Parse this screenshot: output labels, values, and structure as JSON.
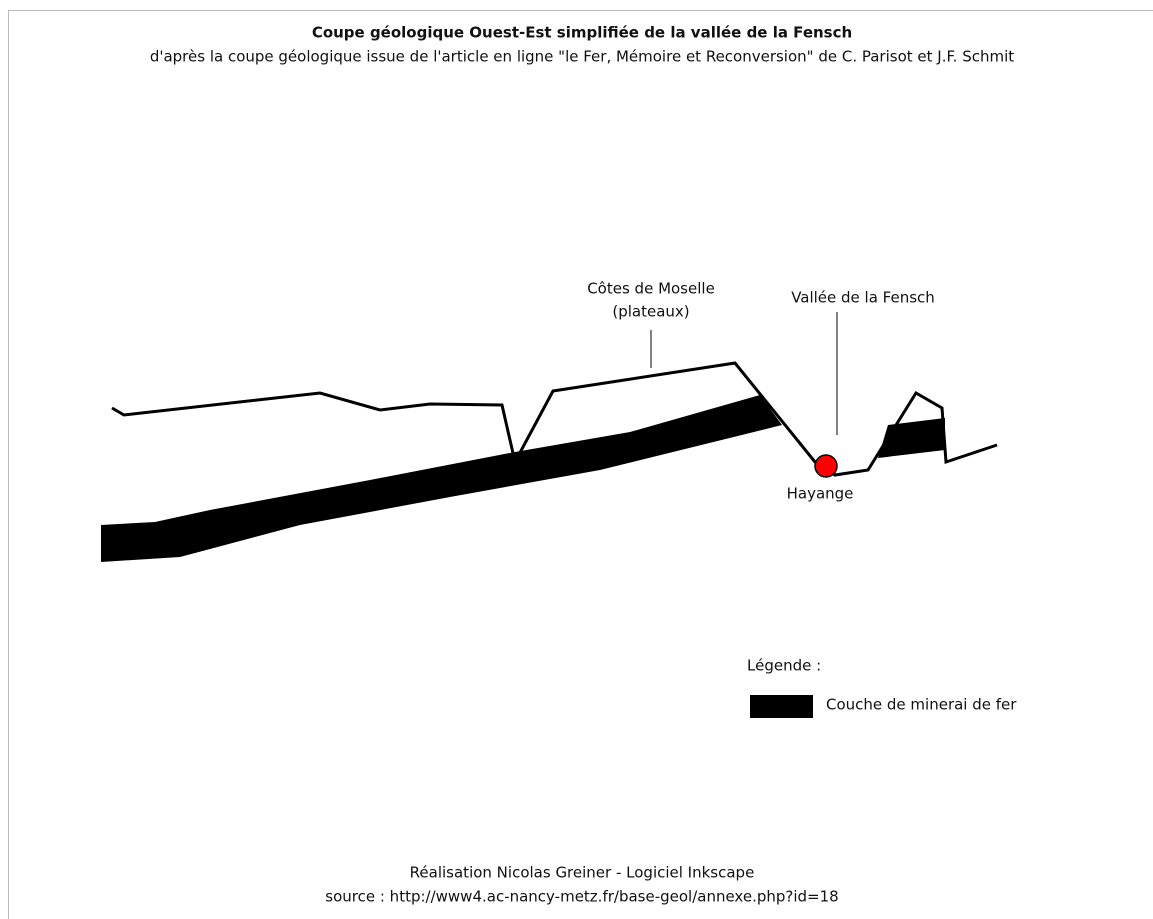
{
  "header": {
    "title": "Coupe géologique Ouest-Est simplifiée de la vallée de la Fensch",
    "subtitle": "d'après la coupe géologique issue de l'article en ligne \"le Fer, Mémoire et Reconversion\" de C. Parisot et J.F. Schmit"
  },
  "labels": {
    "cotes_line1": "Côtes de Moselle",
    "cotes_line2": "(plateaux)",
    "vallee": "Vallée de la Fensch",
    "town": "Hayange"
  },
  "legend": {
    "title": "Légende :",
    "item": "Couche de minerai de fer"
  },
  "footer": {
    "line1": "Réalisation Nicolas Greiner - Logiciel Inkscape",
    "line2": "source : http://www4.ac-nancy-metz.fr/base-geol/annexe.php?id=18"
  }
}
